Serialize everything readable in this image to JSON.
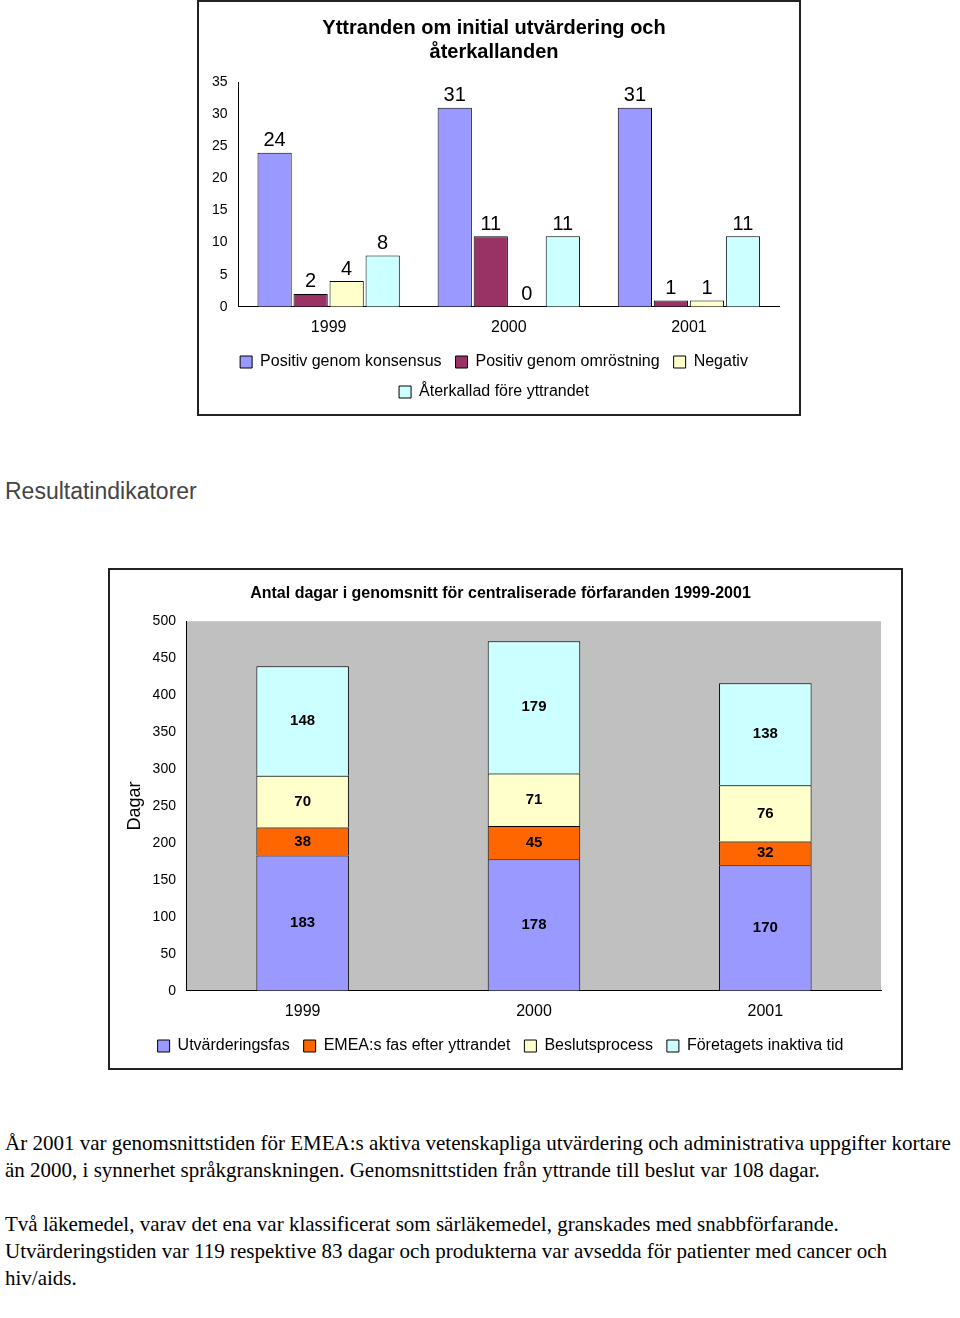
{
  "heading": "Resultatindikatorer",
  "paragraphs": [
    "År 2001 var genomsnittstiden för EMEA:s aktiva vetenskapliga utvärdering och administrativa uppgifter kortare än 2000, i synnerhet språkgranskningen. Genomsnittstiden från yttrande till beslut var 108 dagar.",
    "Två läkemedel, varav det ena var klassificerat som särläkemedel, granskades med snabbförfarande. Utvärderingstiden var 119 respektive 83 dagar och produkterna var avsedda för patienter med cancer och hiv/aids."
  ],
  "chart_data": [
    {
      "type": "bar",
      "title": [
        "Yttranden om initial utvärdering och",
        "återkallanden"
      ],
      "categories": [
        "1999",
        "2000",
        "2001"
      ],
      "series": [
        {
          "name": "Positiv genom konsensus",
          "color": "#9999ff",
          "values": [
            24,
            31,
            31
          ]
        },
        {
          "name": "Positiv genom omröstning",
          "color": "#993366",
          "values": [
            2,
            11,
            1
          ]
        },
        {
          "name": "Negativ",
          "color": "#ffffcc",
          "values": [
            4,
            0,
            1
          ]
        },
        {
          "name": "Återkallad före yttrandet",
          "color": "#ccffff",
          "values": [
            8,
            11,
            11
          ]
        }
      ],
      "ylim": [
        0,
        35
      ],
      "yticks": [
        0,
        5,
        10,
        15,
        20,
        25,
        30,
        35
      ],
      "grid": false,
      "legend": "bottom",
      "data_labels": true
    },
    {
      "type": "bar",
      "title": "Antal dagar i genomsnitt för centraliserade förfaranden 1999-2001",
      "y_label": "Dagar",
      "categories": [
        "1999",
        "2000",
        "2001"
      ],
      "series": [
        {
          "name": "Utvärderingsfas",
          "color": "#9999ff",
          "values": [
            183,
            178,
            170
          ]
        },
        {
          "name": "EMEA:s fas efter yttrandet",
          "color": "#ff6600",
          "values": [
            38,
            45,
            32
          ]
        },
        {
          "name": "Beslutsprocess",
          "color": "#ffffcc",
          "values": [
            70,
            71,
            76
          ]
        },
        {
          "name": "Företagets inaktiva tid",
          "color": "#ccffff",
          "values": [
            148,
            179,
            138
          ]
        }
      ],
      "ylim": [
        0,
        500
      ],
      "yticks": [
        0,
        50,
        100,
        150,
        200,
        250,
        300,
        350,
        400,
        450,
        500
      ],
      "grid": false,
      "legend": "bottom",
      "stacked": true,
      "data_labels": true
    }
  ]
}
